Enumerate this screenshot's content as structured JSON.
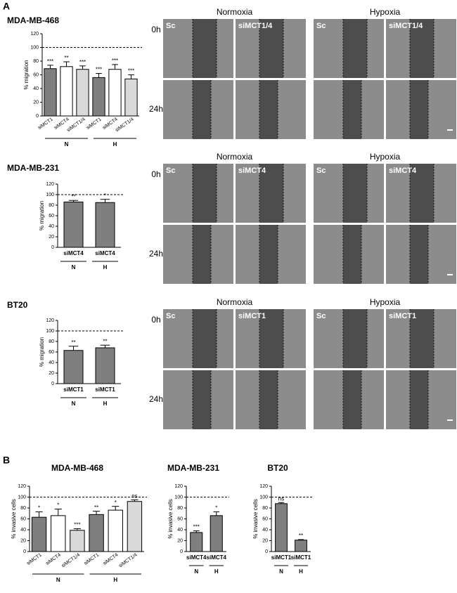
{
  "panel_labels": [
    "A",
    "B"
  ],
  "chart_data": [
    {
      "type": "bar",
      "title": "MDA-MB-468",
      "ylabel": "% migration",
      "categories": [
        "siMCT1",
        "siMCT4",
        "siMCT1/4",
        "siMCT1",
        "siMCT4",
        "siMCT1/4"
      ],
      "values": [
        69,
        72,
        68,
        56,
        68,
        54
      ],
      "errors": [
        5,
        7,
        5,
        6,
        7,
        6
      ],
      "annotations": [
        "***",
        "**",
        "***",
        "***",
        "***",
        "***"
      ],
      "colors": [
        "#7f7f7f",
        "#ffffff",
        "#d9d9d9",
        "#7f7f7f",
        "#ffffff",
        "#d9d9d9"
      ],
      "groups": [
        "N",
        "H"
      ],
      "reference_line": 100,
      "ylim": [
        0,
        120
      ],
      "yticks": [
        0,
        20,
        40,
        60,
        80,
        100,
        120
      ]
    },
    {
      "type": "bar",
      "title": "MDA-MB-231",
      "ylabel": "% migration",
      "categories": [
        "siMCT4",
        "siMCT4"
      ],
      "values": [
        86,
        85
      ],
      "errors": [
        3,
        6
      ],
      "annotations": [
        "**",
        "*"
      ],
      "colors": [
        "#7f7f7f",
        "#7f7f7f"
      ],
      "groups": [
        "N",
        "H"
      ],
      "reference_line": 100,
      "ylim": [
        0,
        120
      ],
      "yticks": [
        0,
        20,
        40,
        60,
        80,
        100,
        120
      ]
    },
    {
      "type": "bar",
      "title": "BT20",
      "ylabel": "% migration",
      "categories": [
        "siMCT1",
        "siMCT1"
      ],
      "values": [
        63,
        68
      ],
      "errors": [
        8,
        5
      ],
      "annotations": [
        "**",
        "**"
      ],
      "colors": [
        "#7f7f7f",
        "#7f7f7f"
      ],
      "groups": [
        "N",
        "H"
      ],
      "reference_line": 100,
      "ylim": [
        0,
        120
      ],
      "yticks": [
        0,
        20,
        40,
        60,
        80,
        100,
        120
      ]
    },
    {
      "type": "bar",
      "title": "MDA-MB-468",
      "ylabel": "% invasive cells",
      "categories": [
        "siMCT1",
        "siMCT4",
        "siMCT1/4",
        "siMCT1",
        "siMCT4",
        "siMCT1/4"
      ],
      "values": [
        63,
        66,
        39,
        68,
        76,
        92
      ],
      "errors": [
        10,
        12,
        3,
        6,
        7,
        3
      ],
      "annotations": [
        "*",
        "*",
        "***",
        "**",
        "*",
        "ns"
      ],
      "colors": [
        "#7f7f7f",
        "#ffffff",
        "#d9d9d9",
        "#7f7f7f",
        "#ffffff",
        "#d9d9d9"
      ],
      "groups": [
        "N",
        "H"
      ],
      "reference_line": 100,
      "ylim": [
        0,
        120
      ],
      "yticks": [
        0,
        20,
        40,
        60,
        80,
        100,
        120
      ]
    },
    {
      "type": "bar",
      "title": "MDA-MB-231",
      "ylabel": "% invasive cells",
      "categories": [
        "siMCT4",
        "siMCT4"
      ],
      "values": [
        35,
        66
      ],
      "errors": [
        3,
        7
      ],
      "annotations": [
        "***",
        "*"
      ],
      "colors": [
        "#7f7f7f",
        "#7f7f7f"
      ],
      "groups": [
        "N",
        "H"
      ],
      "reference_line": 100,
      "ylim": [
        0,
        120
      ],
      "yticks": [
        0,
        20,
        40,
        60,
        80,
        100,
        120
      ]
    },
    {
      "type": "bar",
      "title": "BT20",
      "ylabel": "% invasive cells",
      "categories": [
        "siMCT1",
        "siMCT1"
      ],
      "values": [
        88,
        21
      ],
      "errors": [
        2,
        1
      ],
      "annotations": [
        "ns",
        "**"
      ],
      "colors": [
        "#7f7f7f",
        "#7f7f7f"
      ],
      "groups": [
        "N",
        "H"
      ],
      "reference_line": 100,
      "ylim": [
        0,
        120
      ],
      "yticks": [
        0,
        20,
        40,
        60,
        80,
        100,
        120
      ]
    }
  ],
  "micrographs": [
    {
      "conditions": [
        "Normoxia",
        "Hypoxia"
      ],
      "times": [
        "0h",
        "24h"
      ],
      "labels": [
        "Sc",
        "siMCT1/4",
        "Sc",
        "siMCT1/4"
      ]
    },
    {
      "conditions": [
        "Normoxia",
        "Hypoxia"
      ],
      "times": [
        "0h",
        "24h"
      ],
      "labels": [
        "Sc",
        "siMCT4",
        "Sc",
        "siMCT4"
      ]
    },
    {
      "conditions": [
        "Normoxia",
        "Hypoxia"
      ],
      "times": [
        "0h",
        "24h"
      ],
      "labels": [
        "Sc",
        "siMCT1",
        "Sc",
        "siMCT1"
      ]
    }
  ]
}
